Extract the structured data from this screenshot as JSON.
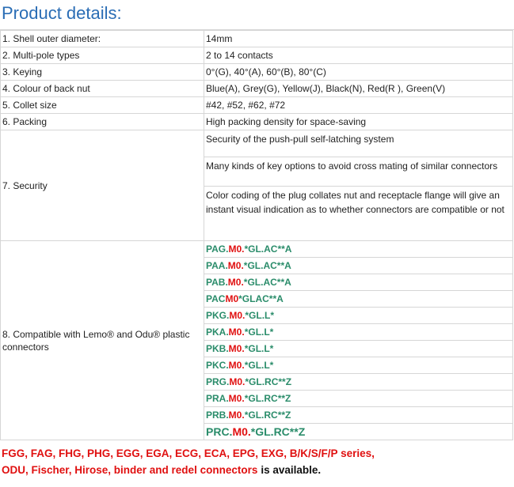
{
  "header": {
    "title": "Product details:"
  },
  "table": {
    "rows": [
      {
        "label": "1. Shell outer diameter:",
        "value": "14mm"
      },
      {
        "label": "2. Multi-pole types",
        "value": "2 to 14 contacts"
      },
      {
        "label": "3. Keying",
        "value": "0°(G), 40°(A), 60°(B), 80°(C)"
      },
      {
        "label": "4. Colour of back nut",
        "value": "Blue(A), Grey(G), Yellow(J), Black(N), Red(R ), Green(V)"
      },
      {
        "label": "5. Collet size",
        "value": "#42, #52, #62, #72"
      },
      {
        "label": "6. Packing",
        "value": "High packing density for space-saving"
      },
      {
        "label": "7. Security",
        "values": [
          "Security of the push-pull self-latching system",
          "Many kinds of key options to avoid cross mating of similar connectors",
          "Color coding of the plug collates nut and receptacle flange will give an instant visual indication as to whether connectors are compatible or not"
        ]
      },
      {
        "label": "8. Compatible with Lemo® and Odu® plastic connectors",
        "parts": [
          [
            "PAG.",
            "M0.",
            "*GL.AC**A"
          ],
          [
            "PAA.",
            "M0.",
            "*GL.AC**A"
          ],
          [
            "PAB.",
            "M0.",
            "*GL.AC**A"
          ],
          [
            "PAC",
            "M0",
            "*GLAC**A"
          ],
          [
            "PKG.",
            "M0.",
            "*GL.L*"
          ],
          [
            "PKA.",
            "M0.",
            "*GL.L*"
          ],
          [
            "PKB.",
            "M0.",
            "*GL.L*"
          ],
          [
            "PKC.",
            "M0.",
            "*GL.L*"
          ],
          [
            "PRG.",
            "M0.",
            "*GL.RC**Z"
          ],
          [
            "PRA.",
            "M0.",
            "*GL.RC**Z"
          ],
          [
            "PRB.",
            "M0.",
            "*GL.RC**Z"
          ],
          [
            "PRC.",
            "M0.",
            "*GL.RC**Z"
          ]
        ]
      }
    ]
  },
  "footer": {
    "series": "FGG, FAG, FHG, PHG, EGG, EGA, ECG, ECA, EPG, EXG, B/K/S/F/P series,",
    "brands": "ODU, Fischer, Hirose, binder and redel connectors",
    "note": "is available."
  }
}
